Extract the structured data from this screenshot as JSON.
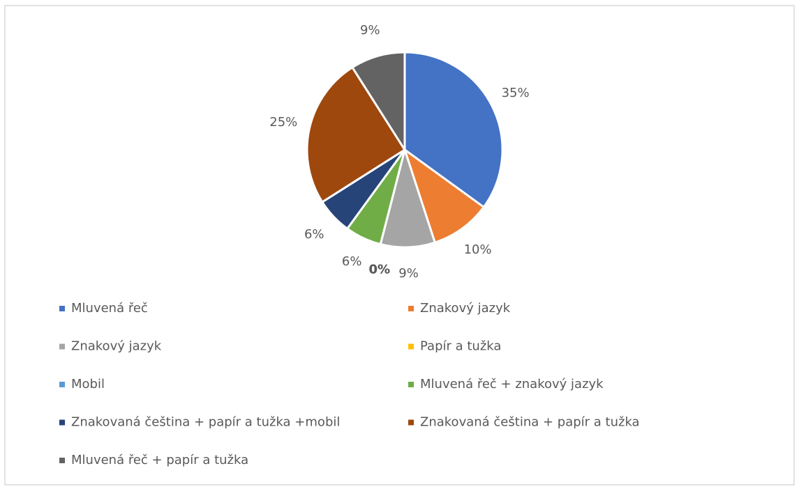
{
  "chart_data": {
    "type": "pie",
    "categories": [
      "Mluvená řeč",
      "Znakový jazyk",
      "Znakový jazyk",
      "Papír a tužka",
      "Mobil",
      "Mluvená řeč + znakový jazyk",
      "Znakovaná čeština + papír a tužka +mobil",
      "Znakovaná čeština + papír a tužka",
      "Mluvená řeč + papír a tužka"
    ],
    "values": [
      35,
      10,
      9,
      0,
      0,
      6,
      6,
      25,
      9
    ],
    "value_labels": [
      "35%",
      "10%",
      "9%",
      "0%",
      "0%",
      "6%",
      "6%",
      "25%",
      "9%"
    ],
    "colors": [
      "#4472c4",
      "#ed7d31",
      "#a5a5a5",
      "#ffc000",
      "#5b9bd5",
      "#70ad47",
      "#264478",
      "#9e480e",
      "#636363"
    ],
    "legend": "bottom"
  }
}
